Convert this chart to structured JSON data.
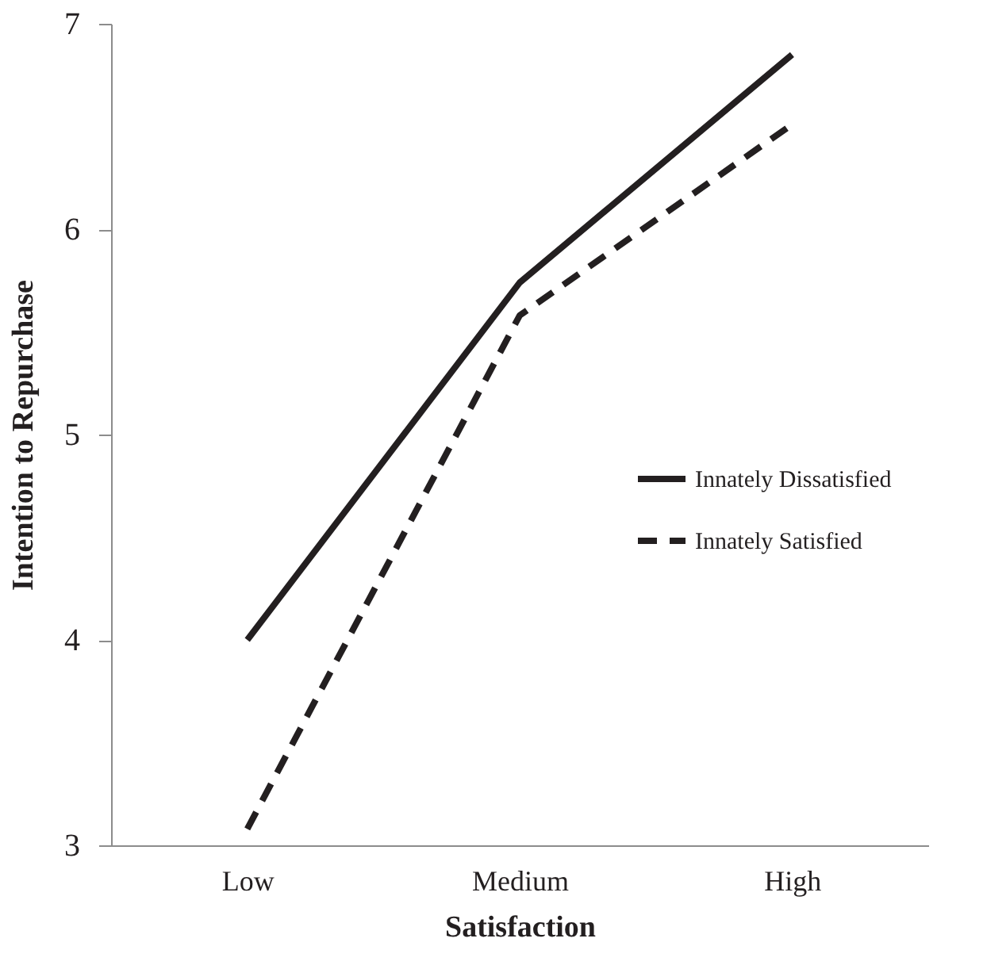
{
  "chart_data": {
    "type": "line",
    "xlabel": "Satisfaction",
    "ylabel": "Intention to Repurchase",
    "categories": [
      "Low",
      "Medium",
      "High"
    ],
    "series": [
      {
        "name": "Innately Dissatisfied",
        "color": "#231f20",
        "line_style": "solid",
        "values": [
          4.0,
          5.74,
          6.85
        ]
      },
      {
        "name": "Innately Satisfied",
        "color": "#231f20",
        "line_style": "dashed",
        "values": [
          3.08,
          5.58,
          6.51
        ]
      }
    ],
    "ylim": [
      3,
      7
    ],
    "yticks": [
      3,
      4,
      5,
      6,
      7
    ],
    "grid": false,
    "legend": "right",
    "marker": "none"
  }
}
